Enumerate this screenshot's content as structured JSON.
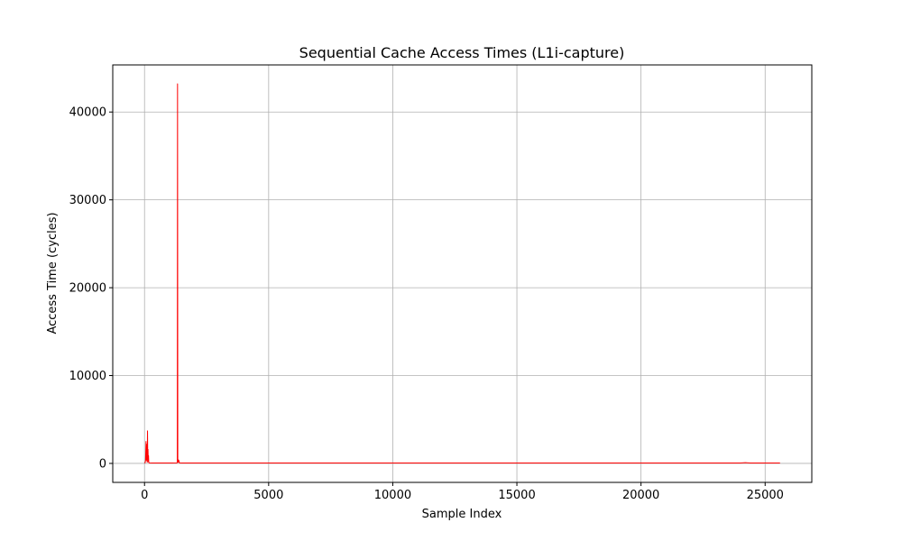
{
  "chart_data": {
    "type": "line",
    "title": "Sequential Cache Access Times (L1i-capture)",
    "xlabel": "Sample Index",
    "ylabel": "Access Time (cycles)",
    "xlim": [
      -1280,
      26880
    ],
    "ylim": [
      -2160,
      45360
    ],
    "xticks": [
      0,
      5000,
      10000,
      15000,
      20000,
      25000
    ],
    "yticks": [
      0,
      10000,
      20000,
      30000,
      40000
    ],
    "grid": true,
    "series": [
      {
        "color": "#ff0000",
        "x": [
          0,
          20,
          40,
          60,
          70,
          80,
          90,
          100,
          110,
          120,
          130,
          140,
          150,
          160,
          170,
          180,
          200,
          300,
          500,
          800,
          1100,
          1300,
          1320,
          1330,
          1340,
          1350,
          1360,
          1370,
          1380,
          1390,
          1400,
          1420,
          1500,
          2000,
          5000,
          10000,
          15000,
          20000,
          24000,
          24200,
          24400,
          25000,
          25600
        ],
        "y": [
          100,
          60,
          300,
          2500,
          400,
          1200,
          300,
          2200,
          150,
          3700,
          500,
          1600,
          200,
          900,
          150,
          80,
          60,
          50,
          50,
          50,
          50,
          60,
          80,
          43200,
          200,
          300,
          150,
          400,
          120,
          300,
          80,
          60,
          50,
          50,
          50,
          50,
          50,
          50,
          50,
          80,
          50,
          50,
          50
        ]
      }
    ]
  }
}
